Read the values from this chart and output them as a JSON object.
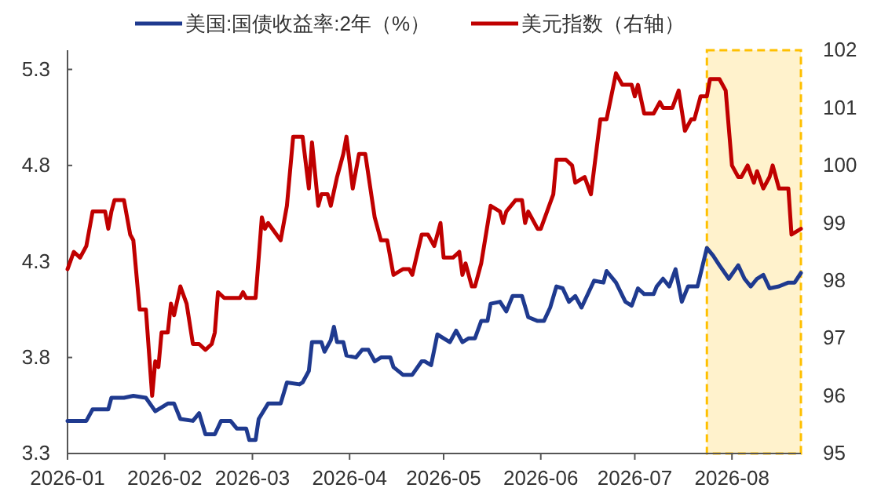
{
  "chart_data": {
    "type": "line",
    "legend": "top",
    "grid": false,
    "xlim": [
      "2026-01-01",
      "2026-08-23"
    ],
    "xticks": [
      {
        "value": "2026-01-01",
        "label": "2026-01"
      },
      {
        "value": "2026-02-01",
        "label": "2026-02"
      },
      {
        "value": "2026-03-01",
        "label": "2026-03"
      },
      {
        "value": "2026-04-01",
        "label": "2026-04"
      },
      {
        "value": "2026-05-01",
        "label": "2026-05"
      },
      {
        "value": "2026-06-01",
        "label": "2026-06"
      },
      {
        "value": "2026-07-01",
        "label": "2026-07"
      },
      {
        "value": "2026-08-01",
        "label": "2026-08"
      }
    ],
    "ylim": [
      3.3,
      5.4
    ],
    "yticks": [
      3.3,
      3.8,
      4.3,
      4.8,
      5.3
    ],
    "y2lim": [
      95,
      102
    ],
    "y2ticks": [
      95,
      96,
      97,
      98,
      99,
      100,
      101,
      102
    ],
    "bands": [
      {
        "axis": "x",
        "from": "2026-07-24",
        "to": "2026-08-23",
        "color": "#fff2cc"
      }
    ],
    "series": [
      {
        "name": "美国:国债收益率:2年（%）",
        "color": "#1f3a8f",
        "x": [
          "2026-01-01",
          "2026-01-07",
          "2026-01-09",
          "2026-01-14",
          "2026-01-15",
          "2026-01-19",
          "2026-01-22",
          "2026-01-26",
          "2026-01-29",
          "2026-02-02",
          "2026-02-04",
          "2026-02-06",
          "2026-02-10",
          "2026-02-12",
          "2026-02-14",
          "2026-02-17",
          "2026-02-19",
          "2026-02-22",
          "2026-02-24",
          "2026-02-27",
          "2026-02-28",
          "2026-03-02",
          "2026-03-03",
          "2026-03-06",
          "2026-03-10",
          "2026-03-12",
          "2026-03-16",
          "2026-03-17",
          "2026-03-19",
          "2026-03-20",
          "2026-03-23",
          "2026-03-24",
          "2026-03-26",
          "2026-03-27",
          "2026-03-28",
          "2026-03-30",
          "2026-03-31",
          "2026-04-03",
          "2026-04-05",
          "2026-04-07",
          "2026-04-09",
          "2026-04-11",
          "2026-04-14",
          "2026-04-15",
          "2026-04-18",
          "2026-04-21",
          "2026-04-24",
          "2026-04-25",
          "2026-04-27",
          "2026-04-29",
          "2026-05-03",
          "2026-05-05",
          "2026-05-07",
          "2026-05-09",
          "2026-05-11",
          "2026-05-13",
          "2026-05-15",
          "2026-05-16",
          "2026-05-19",
          "2026-05-21",
          "2026-05-23",
          "2026-05-26",
          "2026-05-28",
          "2026-05-31",
          "2026-06-02",
          "2026-06-04",
          "2026-06-06",
          "2026-06-08",
          "2026-06-10",
          "2026-06-12",
          "2026-06-14",
          "2026-06-18",
          "2026-06-21",
          "2026-06-22",
          "2026-06-25",
          "2026-06-28",
          "2026-06-30",
          "2026-07-02",
          "2026-07-04",
          "2026-07-07",
          "2026-07-08",
          "2026-07-10",
          "2026-07-12",
          "2026-07-14",
          "2026-07-16",
          "2026-07-18",
          "2026-07-21",
          "2026-07-24",
          "2026-07-26",
          "2026-07-28",
          "2026-07-31",
          "2026-08-03",
          "2026-08-05",
          "2026-08-07",
          "2026-08-09",
          "2026-08-11",
          "2026-08-13",
          "2026-08-16",
          "2026-08-19",
          "2026-08-21",
          "2026-08-23"
        ],
        "values": [
          3.47,
          3.47,
          3.53,
          3.53,
          3.59,
          3.59,
          3.6,
          3.59,
          3.52,
          3.56,
          3.56,
          3.48,
          3.47,
          3.51,
          3.4,
          3.4,
          3.47,
          3.47,
          3.43,
          3.43,
          3.37,
          3.37,
          3.48,
          3.56,
          3.56,
          3.67,
          3.66,
          3.67,
          3.73,
          3.88,
          3.88,
          3.83,
          3.89,
          3.96,
          3.88,
          3.88,
          3.81,
          3.8,
          3.84,
          3.84,
          3.78,
          3.8,
          3.8,
          3.75,
          3.71,
          3.71,
          3.78,
          3.78,
          3.76,
          3.92,
          3.88,
          3.94,
          3.88,
          3.9,
          3.9,
          3.99,
          3.99,
          4.08,
          4.09,
          4.04,
          4.12,
          4.12,
          4.01,
          3.99,
          3.99,
          4.06,
          4.17,
          4.16,
          4.09,
          4.12,
          4.06,
          4.2,
          4.19,
          4.25,
          4.19,
          4.09,
          4.07,
          4.16,
          4.13,
          4.13,
          4.17,
          4.21,
          4.17,
          4.26,
          4.09,
          4.17,
          4.17,
          4.37,
          4.33,
          4.28,
          4.21,
          4.28,
          4.21,
          4.17,
          4.21,
          4.23,
          4.16,
          4.17,
          4.19,
          4.19,
          4.24
        ]
      },
      {
        "name": "美元指数（右轴）",
        "color": "#c00000",
        "axis": "y2",
        "x": [
          "2026-01-01",
          "2026-01-03",
          "2026-01-05",
          "2026-01-07",
          "2026-01-09",
          "2026-01-13",
          "2026-01-14",
          "2026-01-15",
          "2026-01-16",
          "2026-01-19",
          "2026-01-21",
          "2026-01-22",
          "2026-01-24",
          "2026-01-26",
          "2026-01-28",
          "2026-01-29",
          "2026-01-30",
          "2026-01-31",
          "2026-02-02",
          "2026-02-03",
          "2026-02-04",
          "2026-02-06",
          "2026-02-08",
          "2026-02-10",
          "2026-02-12",
          "2026-02-14",
          "2026-02-16",
          "2026-02-17",
          "2026-02-18",
          "2026-02-20",
          "2026-02-25",
          "2026-02-26",
          "2026-02-27",
          "2026-03-02",
          "2026-03-04",
          "2026-03-05",
          "2026-03-06",
          "2026-03-10",
          "2026-03-12",
          "2026-03-14",
          "2026-03-17",
          "2026-03-19",
          "2026-03-20",
          "2026-03-22",
          "2026-03-23",
          "2026-03-25",
          "2026-03-26",
          "2026-03-28",
          "2026-03-30",
          "2026-03-31",
          "2026-04-02",
          "2026-04-04",
          "2026-04-06",
          "2026-04-09",
          "2026-04-11",
          "2026-04-13",
          "2026-04-15",
          "2026-04-18",
          "2026-04-20",
          "2026-04-21",
          "2026-04-24",
          "2026-04-26",
          "2026-04-28",
          "2026-04-30",
          "2026-05-01",
          "2026-05-04",
          "2026-05-06",
          "2026-05-07",
          "2026-05-08",
          "2026-05-10",
          "2026-05-11",
          "2026-05-13",
          "2026-05-16",
          "2026-05-19",
          "2026-05-20",
          "2026-05-21",
          "2026-05-24",
          "2026-05-26",
          "2026-05-27",
          "2026-05-28",
          "2026-05-31",
          "2026-06-01",
          "2026-06-03",
          "2026-06-05",
          "2026-06-06",
          "2026-06-09",
          "2026-06-11",
          "2026-06-12",
          "2026-06-15",
          "2026-06-17",
          "2026-06-20",
          "2026-06-22",
          "2026-06-25",
          "2026-06-27",
          "2026-06-30",
          "2026-07-01",
          "2026-07-02",
          "2026-07-04",
          "2026-07-07",
          "2026-07-09",
          "2026-07-10",
          "2026-07-13",
          "2026-07-15",
          "2026-07-17",
          "2026-07-19",
          "2026-07-20",
          "2026-07-22",
          "2026-07-24",
          "2026-07-25",
          "2026-07-27",
          "2026-07-28",
          "2026-07-30",
          "2026-08-01",
          "2026-08-03",
          "2026-08-04",
          "2026-08-06",
          "2026-08-08",
          "2026-08-09",
          "2026-08-11",
          "2026-08-13",
          "2026-08-14",
          "2026-08-16",
          "2026-08-19",
          "2026-08-20",
          "2026-08-23"
        ],
        "values": [
          98.2,
          98.5,
          98.4,
          98.6,
          99.2,
          99.2,
          98.9,
          99.2,
          99.4,
          99.4,
          98.8,
          98.7,
          97.5,
          97.5,
          96.0,
          96.6,
          96.5,
          97.1,
          97.1,
          97.6,
          97.4,
          97.9,
          97.6,
          96.9,
          96.9,
          96.8,
          96.9,
          97.1,
          97.8,
          97.7,
          97.7,
          97.8,
          97.7,
          97.7,
          99.1,
          98.9,
          99.0,
          98.7,
          99.3,
          100.5,
          100.5,
          99.6,
          100.4,
          99.3,
          99.5,
          99.5,
          99.3,
          99.8,
          100.2,
          100.5,
          99.6,
          100.2,
          100.2,
          99.1,
          98.7,
          98.7,
          98.1,
          98.2,
          98.2,
          98.1,
          98.8,
          98.8,
          98.6,
          99.0,
          98.4,
          98.4,
          98.5,
          98.1,
          98.3,
          97.9,
          97.9,
          98.3,
          99.3,
          99.2,
          99.0,
          99.2,
          99.4,
          99.4,
          99.0,
          99.2,
          98.9,
          98.9,
          99.2,
          99.5,
          100.1,
          100.1,
          100.0,
          99.7,
          99.8,
          99.5,
          100.8,
          100.8,
          101.6,
          101.4,
          101.4,
          101.2,
          101.4,
          100.9,
          100.9,
          101.1,
          101.0,
          101.0,
          101.3,
          100.6,
          100.8,
          100.8,
          101.2,
          101.2,
          101.5,
          101.5,
          101.5,
          101.3,
          100.0,
          99.8,
          99.8,
          100.0,
          99.7,
          99.9,
          99.6,
          99.8,
          100.0,
          99.6,
          99.6,
          98.8,
          98.9
        ]
      }
    ]
  }
}
